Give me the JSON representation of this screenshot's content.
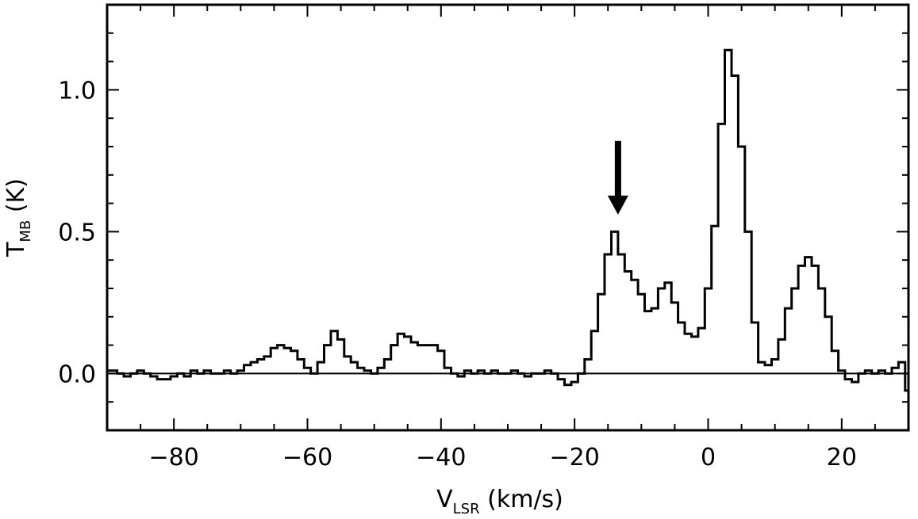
{
  "chart_data": {
    "type": "line",
    "style": "step",
    "xlabel": {
      "main": "V",
      "sub": "LSR",
      "unit": " (km/s)"
    },
    "ylabel": {
      "main": "T",
      "sub": "MB",
      "unit": " (K)"
    },
    "xlim": [
      -90,
      30
    ],
    "ylim": [
      -0.2,
      1.3
    ],
    "x_major_ticks": [
      -80,
      -60,
      -40,
      -20,
      0,
      20
    ],
    "x_tick_labels": [
      "−80",
      "−60",
      "−40",
      "−20",
      "0",
      "20"
    ],
    "x_minor_step": 5,
    "y_major_ticks": [
      0.0,
      0.5,
      1.0
    ],
    "y_tick_labels": [
      "0.0",
      "0.5",
      "1.0"
    ],
    "y_minor_step": 0.1,
    "baseline": 0.0,
    "annotation": {
      "type": "arrow",
      "x": -13.5,
      "y_from": 0.82,
      "y_to": 0.56,
      "color": "#000000"
    },
    "series": [
      {
        "x": [
          -90,
          -89,
          -88,
          -87,
          -86,
          -85,
          -84,
          -83,
          -82,
          -81,
          -80,
          -79,
          -78,
          -77,
          -76,
          -75,
          -74,
          -73,
          -72,
          -71,
          -70,
          -69,
          -68,
          -67,
          -66,
          -65,
          -64,
          -63,
          -62,
          -61,
          -60,
          -59,
          -58,
          -57,
          -56,
          -55,
          -54,
          -53,
          -52,
          -51,
          -50,
          -49,
          -48,
          -47,
          -46,
          -45,
          -44,
          -43,
          -42,
          -41,
          -40,
          -39,
          -38,
          -37,
          -36,
          -35,
          -34,
          -33,
          -32,
          -31,
          -30,
          -29,
          -28,
          -27,
          -26,
          -25,
          -24,
          -23,
          -22,
          -21,
          -20,
          -19,
          -18,
          -17,
          -16,
          -15,
          -14,
          -13,
          -12,
          -11,
          -10,
          -9,
          -8,
          -7,
          -6,
          -5,
          -4,
          -3,
          -2,
          -1,
          0,
          1,
          2,
          3,
          4,
          5,
          6,
          7,
          8,
          9,
          10,
          11,
          12,
          13,
          14,
          15,
          16,
          17,
          18,
          19,
          20,
          21,
          22,
          23,
          24,
          25,
          26,
          27,
          28,
          29,
          30
        ],
        "y": [
          0.01,
          0.01,
          0.0,
          -0.01,
          0.0,
          0.01,
          0.0,
          -0.01,
          -0.02,
          -0.02,
          -0.01,
          0.0,
          -0.01,
          0.01,
          0.0,
          0.01,
          0.0,
          0.0,
          0.01,
          0.0,
          0.01,
          0.03,
          0.04,
          0.05,
          0.06,
          0.09,
          0.1,
          0.09,
          0.08,
          0.05,
          0.02,
          0.0,
          0.04,
          0.1,
          0.15,
          0.12,
          0.06,
          0.04,
          0.02,
          0.01,
          0.0,
          0.02,
          0.05,
          0.1,
          0.14,
          0.13,
          0.11,
          0.1,
          0.1,
          0.1,
          0.08,
          0.02,
          0.0,
          -0.01,
          0.01,
          0.0,
          0.01,
          0.0,
          0.01,
          0.0,
          0.0,
          0.01,
          0.0,
          -0.01,
          0.0,
          0.0,
          0.01,
          0.0,
          -0.02,
          -0.04,
          -0.03,
          0.0,
          0.05,
          0.15,
          0.28,
          0.42,
          0.5,
          0.42,
          0.36,
          0.33,
          0.28,
          0.22,
          0.23,
          0.3,
          0.32,
          0.25,
          0.18,
          0.14,
          0.13,
          0.16,
          0.3,
          0.52,
          0.88,
          1.14,
          1.05,
          0.8,
          0.5,
          0.18,
          0.04,
          0.03,
          0.05,
          0.12,
          0.23,
          0.3,
          0.38,
          0.41,
          0.38,
          0.3,
          0.2,
          0.08,
          0.01,
          -0.02,
          -0.03,
          0.0,
          0.01,
          0.0,
          0.01,
          0.0,
          0.02,
          0.04,
          -0.06
        ]
      }
    ]
  }
}
